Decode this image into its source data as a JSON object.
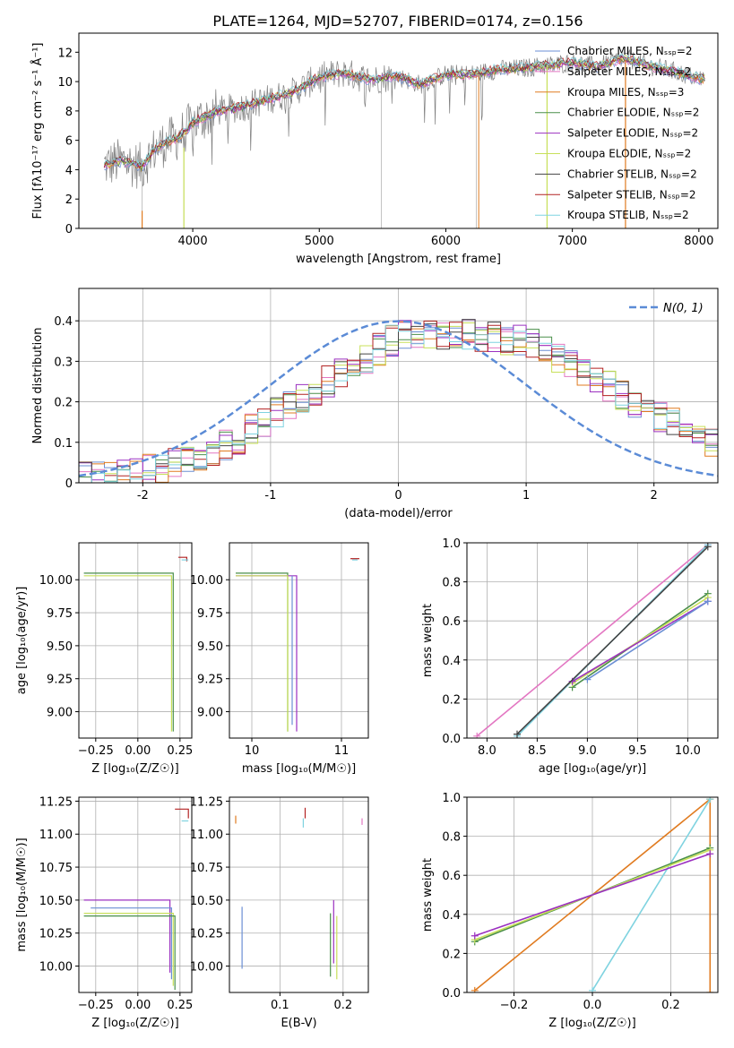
{
  "figure_title": "PLATE=1264, MJD=52707, FIBERID=0174, z=0.156",
  "colors": {
    "chabrier_miles": "#6b8fd4",
    "salpeter_miles": "#e377c2",
    "kroupa_miles": "#e07b20",
    "chabrier_elodie": "#4a8f4a",
    "salpeter_elodie": "#9b30c0",
    "kroupa_elodie": "#c8e05a",
    "chabrier_stelib": "#444444",
    "salpeter_stelib": "#b22222",
    "kroupa_stelib": "#7fd3e0",
    "data": "#808080",
    "normal": "#5b8bd6",
    "grid": "#b0b0b0"
  },
  "chart_data": [
    {
      "id": "spectrum",
      "type": "line",
      "title": "PLATE=1264, MJD=52707, FIBERID=0174, z=0.156",
      "xlabel": "wavelength [Angstrom, rest frame]",
      "ylabel": "Flux [fλ10⁻¹⁷ erg cm⁻² s⁻¹ Å⁻¹]",
      "xlim": [
        3100,
        8150
      ],
      "ylim": [
        0,
        13.3
      ],
      "xticks": [
        4000,
        5000,
        6000,
        7000,
        8000
      ],
      "yticks": [
        0,
        2,
        4,
        6,
        8,
        10,
        12
      ],
      "grid": false,
      "legend": "top-right",
      "continuum": {
        "x": [
          3300,
          3450,
          3600,
          3700,
          3800,
          3900,
          4000,
          4200,
          4400,
          4600,
          4800,
          5000,
          5200,
          5400,
          5600,
          5800,
          6000,
          6200,
          6400,
          6600,
          6800,
          7000,
          7200,
          7400,
          7600,
          7800,
          8000
        ],
        "y": [
          4.3,
          4.6,
          4.2,
          5.4,
          5.9,
          6.3,
          7.2,
          8.0,
          8.3,
          8.8,
          9.3,
          10.3,
          10.6,
          10.1,
          10.4,
          9.8,
          10.5,
          10.5,
          10.8,
          10.9,
          11.1,
          11.3,
          11.0,
          11.6,
          11.1,
          10.7,
          10.2
        ]
      },
      "series": [
        {
          "name": "Chabrier MILES, N_SSP=2"
        },
        {
          "name": "Salpeter MILES, N_SSP=2"
        },
        {
          "name": "Kroupa MILES, N_SSP=3"
        },
        {
          "name": "Chabrier ELODIE, N_SSP=2"
        },
        {
          "name": "Salpeter ELODIE, N_SSP=2"
        },
        {
          "name": "Kroupa ELODIE, N_SSP=2"
        },
        {
          "name": "Chabrier STELIB, N_SSP=2"
        },
        {
          "name": "Salpeter STELIB, N_SSP=2"
        },
        {
          "name": "Kroupa STELIB, N_SSP=2"
        }
      ]
    },
    {
      "id": "residuals",
      "type": "line",
      "xlabel": "(data-model)/error",
      "ylabel": "Normed distribution",
      "xlim": [
        -2.5,
        2.5
      ],
      "ylim": [
        0,
        0.48
      ],
      "xticks": [
        -2,
        -1,
        0,
        1,
        2
      ],
      "yticks": [
        0.0,
        0.1,
        0.2,
        0.3,
        0.4
      ],
      "grid": true,
      "legend": "top-right",
      "normal_label": "N(0, 1)",
      "envelope": {
        "x": [
          -2.5,
          -2.0,
          -1.5,
          -1.0,
          -0.5,
          0.0,
          0.5,
          1.0,
          1.5,
          2.0,
          2.5
        ],
        "y": [
          0.01,
          0.03,
          0.06,
          0.16,
          0.26,
          0.36,
          0.37,
          0.35,
          0.27,
          0.17,
          0.09
        ]
      }
    },
    {
      "id": "age_vs_Z",
      "type": "line",
      "xlabel": "Z [log₁₀(Z/Z☉)]",
      "ylabel": "age  [log₁₀(age/yr)]",
      "xlim": [
        -0.35,
        0.32
      ],
      "ylim": [
        8.8,
        10.28
      ],
      "xticks": [
        -0.25,
        0.0,
        0.25
      ],
      "xticklabels": [
        "−0.25",
        "0.00",
        "0.25"
      ],
      "yticks": [
        9.0,
        9.25,
        9.5,
        9.75,
        10.0
      ],
      "yticklabels": [
        "9.00",
        "9.25",
        "9.50",
        "9.75",
        "10.00"
      ],
      "grid": true,
      "lines": [
        {
          "c": "chabrier_elodie",
          "x": [
            -0.32,
            0.21,
            0.21
          ],
          "y": [
            10.05,
            10.05,
            8.85
          ]
        },
        {
          "c": "kroupa_elodie",
          "x": [
            -0.32,
            0.2,
            0.2
          ],
          "y": [
            10.03,
            10.03,
            8.85
          ]
        },
        {
          "c": "salpeter_stelib",
          "x": [
            0.24,
            0.29,
            0.29
          ],
          "y": [
            10.17,
            10.17,
            10.14
          ]
        },
        {
          "c": "kroupa_stelib",
          "x": [
            0.26,
            0.3
          ],
          "y": [
            10.15,
            10.15
          ]
        }
      ]
    },
    {
      "id": "age_vs_mass",
      "type": "line",
      "xlabel": "mass [log₁₀(M/M☉)]",
      "ylabel": "",
      "xlim": [
        9.75,
        11.3
      ],
      "ylim": [
        8.8,
        10.28
      ],
      "xticks": [
        10,
        11
      ],
      "xticklabels": [
        "10",
        "11"
      ],
      "yticks": [
        9.0,
        9.25,
        9.5,
        9.75,
        10.0
      ],
      "yticklabels": [
        "9.00",
        "9.25",
        "9.50",
        "9.75",
        "10.00"
      ],
      "grid": true,
      "lines": [
        {
          "c": "chabrier_elodie",
          "x": [
            9.82,
            10.4,
            10.4
          ],
          "y": [
            10.05,
            10.05,
            8.85
          ]
        },
        {
          "c": "salpeter_elodie",
          "x": [
            9.82,
            10.5,
            10.5
          ],
          "y": [
            10.03,
            10.03,
            8.85
          ]
        },
        {
          "c": "kroupa_elodie",
          "x": [
            9.82,
            10.4,
            10.4
          ],
          "y": [
            10.03,
            10.03,
            8.85
          ]
        },
        {
          "c": "chabrier_miles",
          "x": [
            10.45,
            10.45
          ],
          "y": [
            10.03,
            8.9
          ]
        },
        {
          "c": "salpeter_stelib",
          "x": [
            11.1,
            11.2
          ],
          "y": [
            10.16,
            10.16
          ]
        },
        {
          "c": "kroupa_stelib",
          "x": [
            11.12,
            11.18
          ],
          "y": [
            10.15,
            10.15
          ]
        }
      ]
    },
    {
      "id": "weight_vs_age",
      "type": "line",
      "xlabel": "age  [log₁₀(age/yr)]",
      "ylabel": "mass weight",
      "xlim": [
        7.8,
        10.3
      ],
      "ylim": [
        0,
        1
      ],
      "xticks": [
        8.0,
        8.5,
        9.0,
        9.5,
        10.0
      ],
      "xticklabels": [
        "8.0",
        "8.5",
        "9.0",
        "9.5",
        "10.0"
      ],
      "yticks": [
        0.0,
        0.2,
        0.4,
        0.6,
        0.8,
        1.0
      ],
      "yticklabels": [
        "0.0",
        "0.2",
        "0.4",
        "0.6",
        "0.8",
        "1.0"
      ],
      "grid": true,
      "lines": [
        {
          "c": "salpeter_miles",
          "x": [
            7.9,
            10.2
          ],
          "y": [
            0.01,
            0.99
          ]
        },
        {
          "c": "kroupa_stelib",
          "x": [
            8.3,
            10.2
          ],
          "y": [
            0.01,
            0.99
          ]
        },
        {
          "c": "chabrier_elodie",
          "x": [
            8.85,
            10.2
          ],
          "y": [
            0.26,
            0.74
          ]
        },
        {
          "c": "kroupa_elodie",
          "x": [
            8.85,
            10.2
          ],
          "y": [
            0.28,
            0.72
          ]
        },
        {
          "c": "salpeter_elodie",
          "x": [
            8.85,
            10.2
          ],
          "y": [
            0.29,
            0.7
          ]
        },
        {
          "c": "chabrier_miles",
          "x": [
            9.0,
            10.2
          ],
          "y": [
            0.3,
            0.7
          ]
        },
        {
          "c": "chabrier_stelib",
          "x": [
            8.3,
            10.2
          ],
          "y": [
            0.02,
            0.98
          ]
        }
      ]
    },
    {
      "id": "mass_vs_Z",
      "type": "line",
      "xlabel": "Z [log₁₀(Z/Z☉)]",
      "ylabel": "mass [log₁₀(M/M☉)]",
      "xlim": [
        -0.35,
        0.32
      ],
      "ylim": [
        9.8,
        11.28
      ],
      "xticks": [
        -0.25,
        0.0,
        0.25
      ],
      "xticklabels": [
        "−0.25",
        "0.00",
        "0.25"
      ],
      "yticks": [
        10.0,
        10.25,
        10.5,
        10.75,
        11.0,
        11.25
      ],
      "yticklabels": [
        "10.00",
        "10.25",
        "10.50",
        "10.75",
        "11.00",
        "11.25"
      ],
      "grid": true,
      "lines": [
        {
          "c": "salpeter_elodie",
          "x": [
            -0.32,
            0.19,
            0.19
          ],
          "y": [
            10.5,
            10.5,
            9.95
          ]
        },
        {
          "c": "chabrier_miles",
          "x": [
            -0.28,
            0.2,
            0.2
          ],
          "y": [
            10.44,
            10.44,
            9.9
          ]
        },
        {
          "c": "kroupa_elodie",
          "x": [
            -0.32,
            0.21,
            0.21
          ],
          "y": [
            10.4,
            10.4,
            9.85
          ]
        },
        {
          "c": "chabrier_elodie",
          "x": [
            -0.32,
            0.22,
            0.22
          ],
          "y": [
            10.38,
            10.38,
            9.82
          ]
        },
        {
          "c": "salpeter_stelib",
          "x": [
            0.22,
            0.3,
            0.3
          ],
          "y": [
            11.19,
            11.19,
            11.12
          ]
        },
        {
          "c": "kroupa_stelib",
          "x": [
            0.26,
            0.3
          ],
          "y": [
            11.1,
            11.1
          ]
        }
      ]
    },
    {
      "id": "mass_vs_EBV",
      "type": "scatter",
      "xlabel": "E(B-V)",
      "ylabel": "",
      "xlim": [
        0.02,
        0.24
      ],
      "ylim": [
        9.8,
        11.28
      ],
      "xticks": [
        0.1,
        0.2
      ],
      "xticklabels": [
        "0.1",
        "0.2"
      ],
      "yticks": [
        10.0,
        10.25,
        10.5,
        10.75,
        11.0,
        11.25
      ],
      "yticklabels": [
        "10.00",
        "10.25",
        "10.50",
        "10.75",
        "11.00",
        "11.25"
      ],
      "grid": true,
      "lines": [
        {
          "c": "chabrier_miles",
          "x": [
            0.04,
            0.04
          ],
          "y": [
            9.98,
            10.45
          ]
        },
        {
          "c": "salpeter_elodie",
          "x": [
            0.185,
            0.185
          ],
          "y": [
            10.02,
            10.5
          ]
        },
        {
          "c": "chabrier_elodie",
          "x": [
            0.18,
            0.18
          ],
          "y": [
            9.92,
            10.4
          ]
        },
        {
          "c": "kroupa_elodie",
          "x": [
            0.19,
            0.19
          ],
          "y": [
            9.9,
            10.38
          ]
        },
        {
          "c": "salpeter_stelib",
          "x": [
            0.14,
            0.14
          ],
          "y": [
            11.12,
            11.2
          ]
        },
        {
          "c": "kroupa_stelib",
          "x": [
            0.137,
            0.137
          ],
          "y": [
            11.05,
            11.12
          ]
        },
        {
          "c": "kroupa_miles",
          "x": [
            0.03,
            0.03
          ],
          "y": [
            11.08,
            11.14
          ]
        },
        {
          "c": "salpeter_miles",
          "x": [
            0.23,
            0.23
          ],
          "y": [
            11.07,
            11.12
          ]
        }
      ]
    },
    {
      "id": "weight_vs_Z",
      "type": "line",
      "xlabel": "Z [log₁₀(Z/Z☉)]",
      "ylabel": "mass weight",
      "xlim": [
        -0.32,
        0.32
      ],
      "ylim": [
        0,
        1
      ],
      "xticks": [
        -0.2,
        0.0,
        0.2
      ],
      "xticklabels": [
        "−0.2",
        "0.0",
        "0.2"
      ],
      "yticks": [
        0.0,
        0.2,
        0.4,
        0.6,
        0.8,
        1.0
      ],
      "yticklabels": [
        "0.0",
        "0.2",
        "0.4",
        "0.6",
        "0.8",
        "1.0"
      ],
      "grid": true,
      "lines": [
        {
          "c": "kroupa_miles",
          "x": [
            -0.3,
            0.3,
            0.3
          ],
          "y": [
            0.01,
            0.99,
            0.0
          ]
        },
        {
          "c": "kroupa_stelib",
          "x": [
            0.0,
            0.3
          ],
          "y": [
            0.01,
            0.99
          ]
        },
        {
          "c": "chabrier_elodie",
          "x": [
            -0.3,
            0.3
          ],
          "y": [
            0.26,
            0.74
          ]
        },
        {
          "c": "kroupa_elodie",
          "x": [
            -0.3,
            0.3
          ],
          "y": [
            0.27,
            0.73
          ]
        },
        {
          "c": "salpeter_elodie",
          "x": [
            -0.3,
            0.3
          ],
          "y": [
            0.29,
            0.71
          ]
        }
      ]
    }
  ]
}
